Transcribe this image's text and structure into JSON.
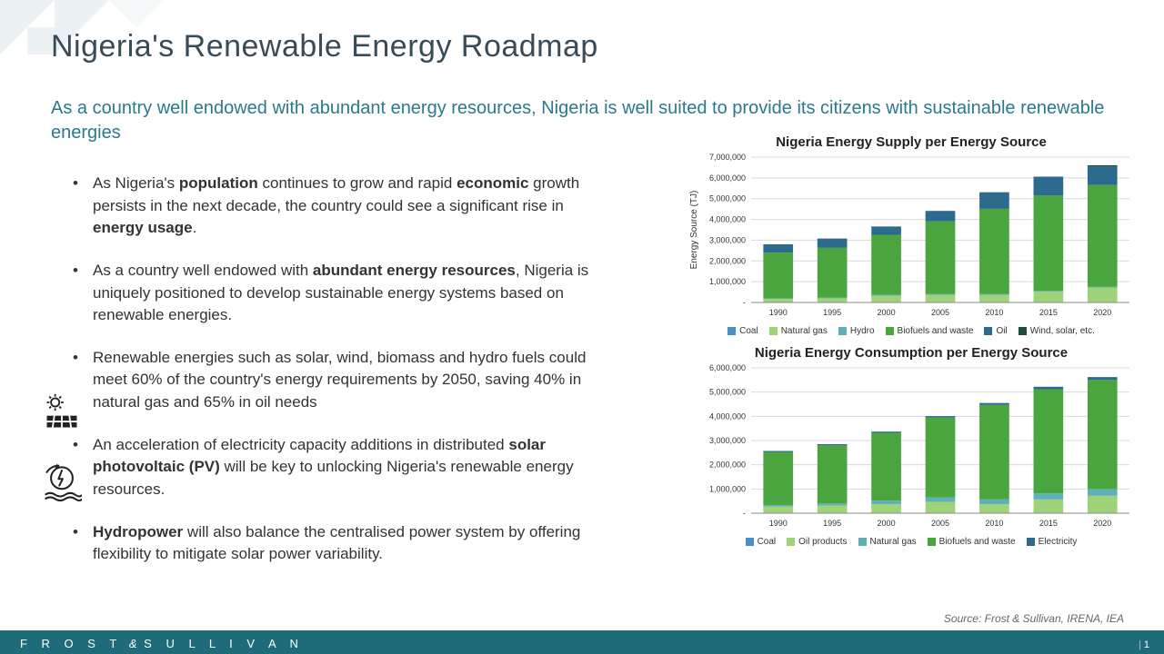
{
  "title": "Nigeria's Renewable Energy Roadmap",
  "subtitle": "As a country well endowed with abundant energy resources, Nigeria is well suited to provide its citizens with sustainable renewable energies",
  "bullets": [
    "As Nigeria's <b>population</b> continues to grow and rapid <b>economic</b> growth persists in the next decade, the country could see a significant rise in <b>energy usage</b>.",
    "As a country well endowed with <b>abundant energy resources</b>, Nigeria is uniquely positioned to develop sustainable energy systems based on renewable energies.",
    "Renewable energies such as solar, wind, biomass and hydro fuels could meet 60% of the country's energy requirements by 2050, saving 40% in natural gas and 65% in oil needs",
    "An acceleration of electricity capacity additions in distributed <b>solar photovoltaic (PV)</b> will be key to unlocking Nigeria's renewable energy resources.",
    "<b>Hydropower</b> will also balance the centralised power system by offering flexibility to mitigate solar power variability."
  ],
  "chart1": {
    "title": "Nigeria Energy Supply per Energy Source",
    "type": "stacked-bar",
    "ylabel": "Energy Source (TJ)",
    "ylim": [
      0,
      7000000
    ],
    "ytick_step": 1000000,
    "categories": [
      "1990",
      "1995",
      "2000",
      "2005",
      "2010",
      "2015",
      "2020"
    ],
    "series": [
      {
        "label": "Coal",
        "color": "#4a90c2",
        "values": [
          20000,
          20000,
          20000,
          20000,
          20000,
          20000,
          20000
        ]
      },
      {
        "label": "Natural gas",
        "color": "#9fd37a",
        "values": [
          150000,
          180000,
          300000,
          350000,
          350000,
          500000,
          700000
        ]
      },
      {
        "label": "Hydro",
        "color": "#5fb0b7",
        "values": [
          30000,
          30000,
          40000,
          40000,
          40000,
          40000,
          40000
        ]
      },
      {
        "label": "Biofuels and waste",
        "color": "#4aa53f",
        "values": [
          2200000,
          2400000,
          2900000,
          3500000,
          4100000,
          4600000,
          4900000
        ]
      },
      {
        "label": "Oil",
        "color": "#2d6b8e",
        "values": [
          400000,
          450000,
          400000,
          500000,
          800000,
          900000,
          900000
        ]
      },
      {
        "label": "Wind, solar, etc.",
        "color": "#1d4d3a",
        "values": [
          0,
          0,
          0,
          0,
          0,
          0,
          50000
        ]
      }
    ],
    "background_color": "#ffffff",
    "grid_color": "#d9d9d9",
    "label_fontsize": 9,
    "bar_width": 0.55
  },
  "chart2": {
    "title": "Nigeria Energy Consumption per Energy Source",
    "type": "stacked-bar",
    "ylabel": "",
    "ylim": [
      0,
      6000000
    ],
    "ytick_step": 1000000,
    "categories": [
      "1990",
      "1995",
      "2000",
      "2005",
      "2010",
      "2015",
      "2020"
    ],
    "series": [
      {
        "label": "Coal",
        "color": "#4a90c2",
        "values": [
          20000,
          20000,
          20000,
          20000,
          20000,
          20000,
          20000
        ]
      },
      {
        "label": "Oil products",
        "color": "#9fd37a",
        "values": [
          250000,
          300000,
          350000,
          450000,
          350000,
          550000,
          700000
        ]
      },
      {
        "label": "Natural gas",
        "color": "#5fb0b7",
        "values": [
          60000,
          80000,
          150000,
          180000,
          200000,
          250000,
          280000
        ]
      },
      {
        "label": "Biofuels and waste",
        "color": "#4aa53f",
        "values": [
          2200000,
          2400000,
          2800000,
          3300000,
          3900000,
          4300000,
          4500000
        ]
      },
      {
        "label": "Electricity",
        "color": "#2d6b8e",
        "values": [
          40000,
          50000,
          50000,
          60000,
          80000,
          100000,
          120000
        ]
      }
    ],
    "background_color": "#ffffff",
    "grid_color": "#d9d9d9",
    "label_fontsize": 9,
    "bar_width": 0.55
  },
  "source": "Source: Frost & Sullivan, IRENA, IEA",
  "footer_logo": "FROST & SULLIVAN",
  "page_number": "1",
  "colors": {
    "title": "#394b57",
    "subtitle": "#2a7a8c",
    "footer_bg": "#1e6b7a"
  }
}
